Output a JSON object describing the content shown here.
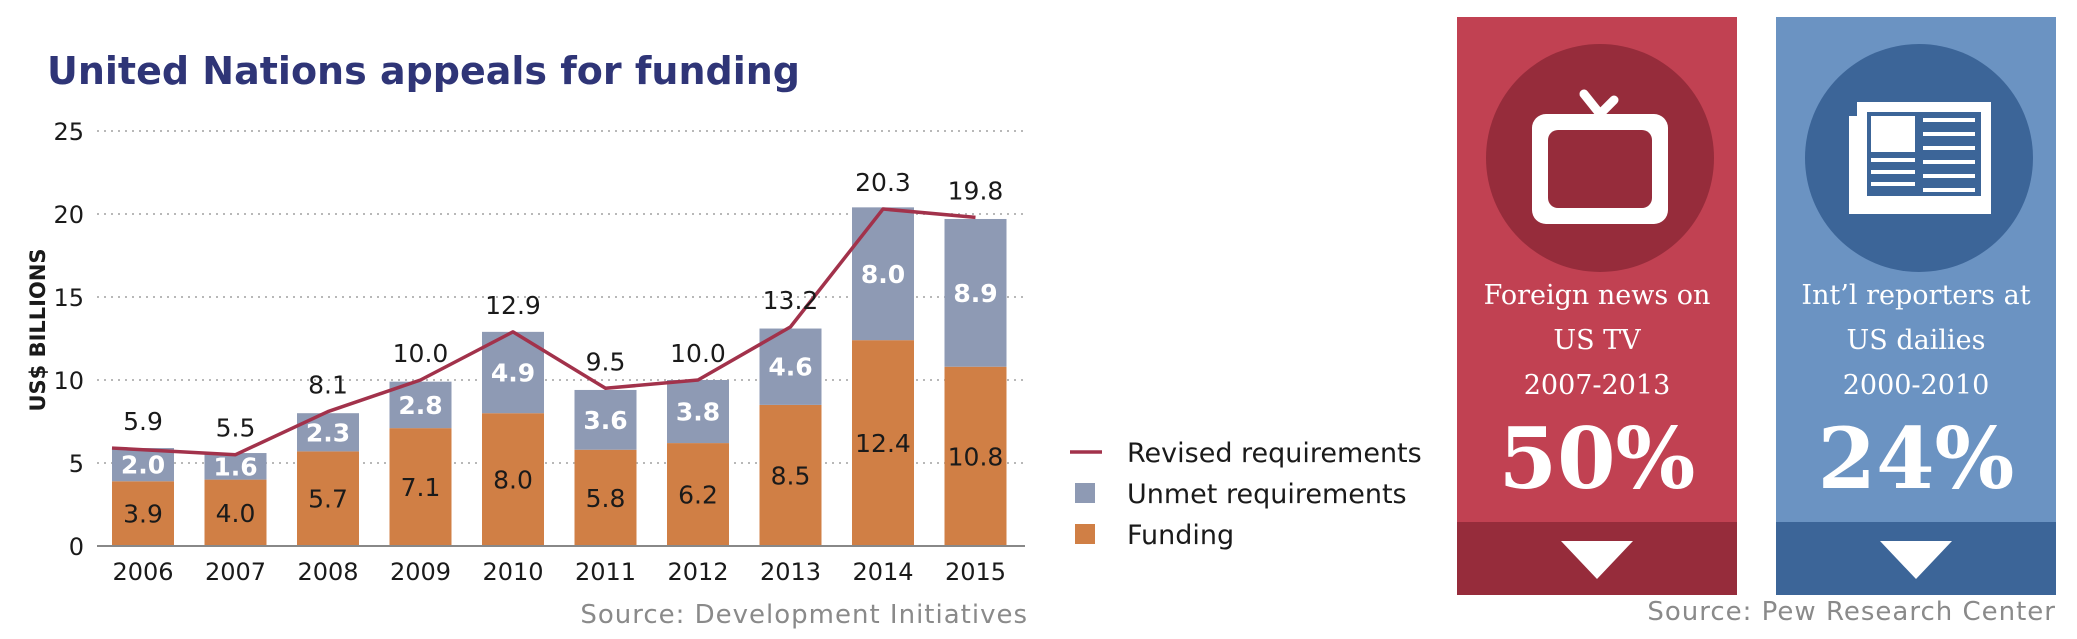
{
  "chart_data": {
    "type": "bar",
    "stacked": true,
    "title": "United Nations appeals for funding",
    "ylabel": "US$ BILLIONS",
    "ylim": [
      0,
      25
    ],
    "yticks": [
      "0",
      "5",
      "10",
      "15",
      "20",
      "25"
    ],
    "grid": true,
    "legend_position": "right",
    "categories": [
      "2006",
      "2007",
      "2008",
      "2009",
      "2010",
      "2011",
      "2012",
      "2013",
      "2014",
      "2015"
    ],
    "series": [
      {
        "name": "Funding",
        "type": "bar",
        "color": "#d07f45",
        "values": [
          3.9,
          4.0,
          5.7,
          7.1,
          8.0,
          5.8,
          6.2,
          8.5,
          12.4,
          10.8
        ],
        "labels": [
          "3.9",
          "4.0",
          "5.7",
          "7.1",
          "8.0",
          "5.8",
          "6.2",
          "8.5",
          "12.4",
          "10.8"
        ]
      },
      {
        "name": "Unmet requirements",
        "type": "bar",
        "color": "#8e9ab4",
        "values": [
          2.0,
          1.6,
          2.3,
          2.8,
          4.9,
          3.6,
          3.8,
          4.6,
          8.0,
          8.9
        ],
        "labels": [
          "2.0",
          "1.6",
          "2.3",
          "2.8",
          "4.9",
          "3.6",
          "3.8",
          "4.6",
          "8.0",
          "8.9"
        ]
      },
      {
        "name": "Revised requirements",
        "type": "line",
        "color": "#a2324b",
        "values": [
          5.9,
          5.5,
          8.1,
          10.0,
          12.9,
          9.5,
          10.0,
          13.2,
          20.3,
          19.8
        ],
        "labels": [
          "5.9",
          "5.5",
          "8.1",
          "10.0",
          "12.9",
          "9.5",
          "10.0",
          "13.2",
          "20.3",
          "19.8"
        ]
      }
    ],
    "legend": [
      "Revised requirements",
      "Unmet requirements",
      "Funding"
    ],
    "source": "Source: Development Initiatives"
  },
  "stats_panels": [
    {
      "caption_lines": [
        "Foreign news on",
        "US TV",
        "2007-2013"
      ],
      "value": "50%",
      "icon": "tv-icon",
      "bg_color": "#c14152",
      "dark_color": "#962c3b"
    },
    {
      "caption_lines": [
        "Int’l reporters at",
        "US dailies",
        "2000-2010"
      ],
      "value": "24%",
      "icon": "newspaper-icon",
      "bg_color": "#6b93c2",
      "dark_color": "#3c6598"
    }
  ],
  "source_right": "Source: Pew Research Center"
}
